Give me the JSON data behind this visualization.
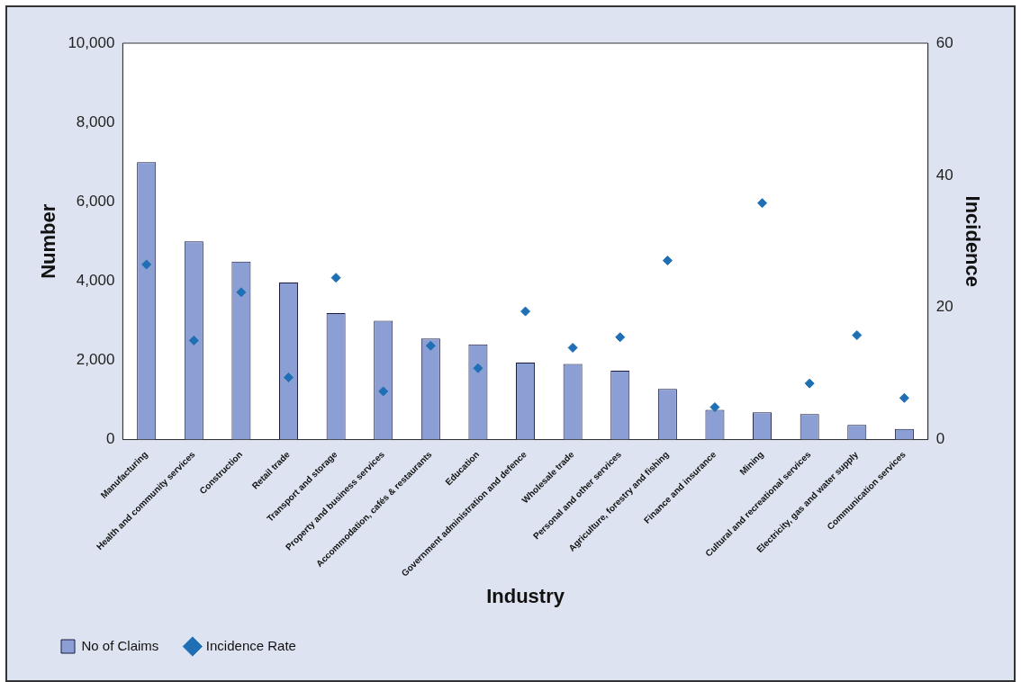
{
  "chart_data": {
    "type": "bar",
    "xlabel": "Industry",
    "ylabel": "Number",
    "y2label": "Incidence",
    "categories": [
      "Manufacturing",
      "Health and community services",
      "Construction",
      "Retail trade",
      "Transport and storage",
      "Property and business services",
      "Accommodation, cafés & restaurants",
      "Education",
      "Government administration and defence",
      "Wholesale trade",
      "Personal and other services",
      "Agriculture, forestry and fishing",
      "Finance and insurance",
      "Mining",
      "Cultural and recreational services",
      "Electricity, gas and water supply",
      "Communication services"
    ],
    "series": [
      {
        "name": "No of Claims",
        "color": "#8c9fd4",
        "values": [
          7000,
          5000,
          4490,
          3960,
          3190,
          3000,
          2550,
          2400,
          1940,
          1910,
          1740,
          1280,
          750,
          690,
          640,
          370,
          270
        ]
      },
      {
        "name": "Incidence Rate",
        "type": "scatter",
        "axis": "y2",
        "color": "#1f6fb5",
        "values": [
          26.5,
          15.0,
          22.3,
          9.4,
          24.5,
          7.3,
          14.2,
          10.8,
          19.4,
          13.9,
          15.5,
          27.1,
          4.9,
          35.8,
          8.5,
          15.8,
          6.3
        ]
      }
    ],
    "ylim": [
      0,
      10000
    ],
    "yticks": [
      {
        "value": 0,
        "label": "0"
      },
      {
        "value": 2000,
        "label": "2,000"
      },
      {
        "value": 4000,
        "label": "4,000"
      },
      {
        "value": 6000,
        "label": "6,000"
      },
      {
        "value": 8000,
        "label": "8,000"
      },
      {
        "value": 10000,
        "label": "10,000"
      }
    ],
    "y2lim": [
      0,
      60
    ],
    "y2ticks": [
      0,
      20,
      40,
      60
    ],
    "grid": false,
    "legend": "bottom left",
    "marker": "diamond"
  }
}
